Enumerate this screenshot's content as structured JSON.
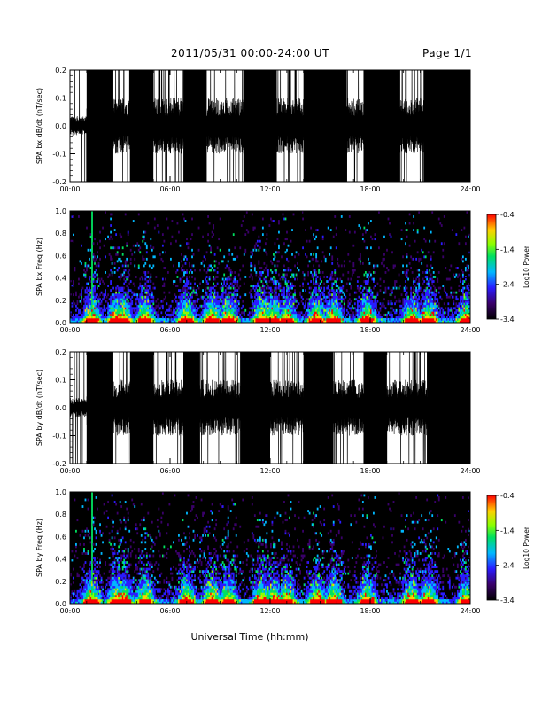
{
  "header": {
    "date_range": "2011/05/31  00:00-24:00 UT",
    "page": "Page 1/1"
  },
  "x_axis": {
    "label": "Universal Time (hh:mm)",
    "ticks": [
      "00:00",
      "06:00",
      "12:00",
      "18:00",
      "24:00"
    ]
  },
  "chart_data": [
    {
      "type": "line",
      "title": "",
      "ylabel": "SPA bx dB/dt (nT/sec)",
      "xlabel": "",
      "xlim": [
        0,
        24
      ],
      "ylim": [
        -0.2,
        0.2
      ],
      "yticks": [
        "0.2",
        "0.1",
        "0.0",
        "-0.1",
        "-0.2"
      ],
      "high_activity_intervals_hours": [
        [
          1.0,
          2.6
        ],
        [
          3.6,
          5.0
        ],
        [
          6.8,
          8.2
        ],
        [
          10.4,
          12.4
        ],
        [
          14.0,
          16.6
        ],
        [
          17.6,
          19.8
        ],
        [
          21.2,
          24.0
        ]
      ],
      "baseline_amplitude": 0.1,
      "color": "#000000"
    },
    {
      "type": "heatmap",
      "ylabel": "SPA bx Freq (Hz)",
      "xlim": [
        0,
        24
      ],
      "ylim": [
        0.0,
        1.0
      ],
      "yticks": [
        "1.0",
        "0.8",
        "0.6",
        "0.4",
        "0.2",
        "0.0"
      ],
      "colorbar": {
        "label": "Log10 Power",
        "ticks": [
          "-0.4",
          "-1.4",
          "-2.4",
          "-3.4"
        ],
        "range": [
          -3.4,
          -0.4
        ]
      },
      "activity_hours": [
        1.3,
        2.8,
        3.2,
        4.5,
        7.0,
        8.5,
        9.5,
        11.5,
        12.2,
        13.0,
        14.8,
        15.8,
        17.8,
        20.5,
        21.5,
        23.8
      ],
      "strong_band_hours": [
        1.3
      ]
    },
    {
      "type": "line",
      "ylabel": "SPA by dB/dt (nT/sec)",
      "xlim": [
        0,
        24
      ],
      "ylim": [
        -0.2,
        0.2
      ],
      "yticks": [
        "0.2",
        "0.1",
        "0.0",
        "-0.1",
        "-0.2"
      ],
      "high_activity_intervals_hours": [
        [
          1.0,
          2.6
        ],
        [
          3.6,
          5.0
        ],
        [
          6.8,
          7.8
        ],
        [
          10.2,
          12.0
        ],
        [
          14.0,
          15.8
        ],
        [
          17.6,
          19.0
        ],
        [
          21.4,
          24.0
        ]
      ],
      "baseline_amplitude": 0.1,
      "color": "#000000"
    },
    {
      "type": "heatmap",
      "ylabel": "SPA by Freq (Hz)",
      "xlim": [
        0,
        24
      ],
      "ylim": [
        0.0,
        1.0
      ],
      "yticks": [
        "1.0",
        "0.8",
        "0.6",
        "0.4",
        "0.2",
        "0.0"
      ],
      "colorbar": {
        "label": "Log10 Power",
        "ticks": [
          "-0.4",
          "-1.4",
          "-2.4",
          "-3.4"
        ],
        "range": [
          -3.4,
          -0.4
        ]
      },
      "activity_hours": [
        1.3,
        2.8,
        3.2,
        4.5,
        7.0,
        8.5,
        9.5,
        11.5,
        12.2,
        13.0,
        14.8,
        15.8,
        17.8,
        20.5,
        21.5,
        23.8
      ],
      "strong_band_hours": [
        1.3
      ]
    }
  ]
}
